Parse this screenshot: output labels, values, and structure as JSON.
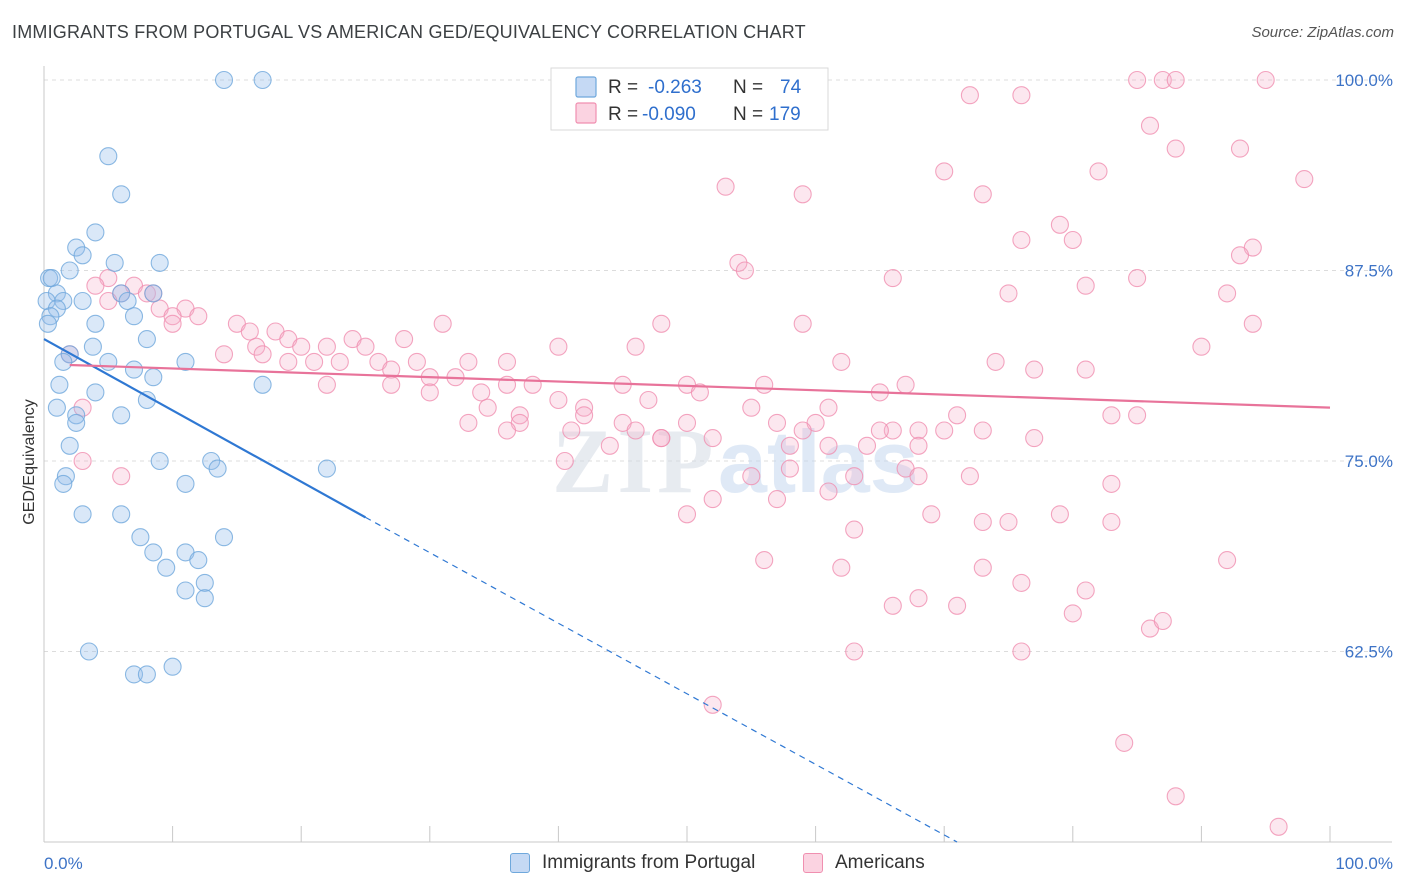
{
  "title": "IMMIGRANTS FROM PORTUGAL VS AMERICAN GED/EQUIVALENCY CORRELATION CHART",
  "source": "Source: ZipAtlas.com",
  "watermark": {
    "zip": "ZIP",
    "atlas": "atlas"
  },
  "legend_top": {
    "rows": [
      {
        "r_label": "R =",
        "r_value": "-0.263",
        "n_label": "N =",
        "n_value": "74"
      },
      {
        "r_label": "R =",
        "r_value": "-0.090",
        "n_label": "N =",
        "n_value": "179"
      }
    ]
  },
  "legend_bottom": {
    "items": [
      {
        "label": "Immigrants from Portugal"
      },
      {
        "label": "Americans"
      }
    ]
  },
  "chart_data": {
    "type": "scatter",
    "title": "IMMIGRANTS FROM PORTUGAL VS AMERICAN GED/EQUIVALENCY CORRELATION CHART",
    "xlabel": "",
    "ylabel": "GED/Equivalency",
    "xlim": [
      0,
      100
    ],
    "ylim": [
      50,
      100
    ],
    "x_tick_labels": [
      "0.0%",
      "100.0%"
    ],
    "y_ticks": [
      62.5,
      75.0,
      87.5,
      100.0
    ],
    "y_tick_labels": [
      "62.5%",
      "75.0%",
      "87.5%",
      "100.0%"
    ],
    "grid": true,
    "colors": {
      "blue": "#6fa8dc",
      "blue_line": "#2f78d3",
      "pink": "#f08fb0",
      "pink_line": "#e8739a",
      "tick_label": "#3d73c6"
    },
    "series": [
      {
        "name": "Immigrants from Portugal",
        "color": "blue",
        "trend": {
          "x": [
            0,
            25
          ],
          "y": [
            83.0,
            71.3
          ],
          "dashed_to": [
            71,
            50
          ]
        },
        "points": [
          [
            14,
            100
          ],
          [
            17,
            100
          ],
          [
            5,
            95
          ],
          [
            6,
            92.5
          ],
          [
            4,
            90
          ],
          [
            2.5,
            89
          ],
          [
            3,
            88.5
          ],
          [
            5.5,
            88
          ],
          [
            9,
            88
          ],
          [
            2,
            87.5
          ],
          [
            0.4,
            87
          ],
          [
            0.6,
            87
          ],
          [
            1,
            86
          ],
          [
            6,
            86
          ],
          [
            8.5,
            86
          ],
          [
            0.2,
            85.5
          ],
          [
            1.5,
            85.5
          ],
          [
            3,
            85.5
          ],
          [
            6.5,
            85.5
          ],
          [
            1,
            85
          ],
          [
            0.5,
            84.5
          ],
          [
            0.3,
            84
          ],
          [
            7,
            84.5
          ],
          [
            4,
            84
          ],
          [
            8,
            83
          ],
          [
            3.8,
            82.5
          ],
          [
            2,
            82
          ],
          [
            11,
            81.5
          ],
          [
            5,
            81.5
          ],
          [
            1.5,
            81.5
          ],
          [
            7,
            81
          ],
          [
            8.5,
            80.5
          ],
          [
            1.2,
            80
          ],
          [
            17,
            80
          ],
          [
            4,
            79.5
          ],
          [
            8,
            79
          ],
          [
            1,
            78.5
          ],
          [
            6,
            78
          ],
          [
            2.5,
            78
          ],
          [
            2.5,
            77.5
          ],
          [
            2,
            76
          ],
          [
            9,
            75
          ],
          [
            13,
            75
          ],
          [
            13.5,
            74.5
          ],
          [
            22,
            74.5
          ],
          [
            1.7,
            74
          ],
          [
            1.5,
            73.5
          ],
          [
            11,
            73.5
          ],
          [
            3,
            71.5
          ],
          [
            6,
            71.5
          ],
          [
            7.5,
            70
          ],
          [
            14,
            70
          ],
          [
            8.5,
            69
          ],
          [
            11,
            69
          ],
          [
            9.5,
            68
          ],
          [
            12,
            68.5
          ],
          [
            12.5,
            67
          ],
          [
            11,
            66.5
          ],
          [
            12.5,
            66
          ],
          [
            3.5,
            62.5
          ],
          [
            7,
            61
          ],
          [
            8,
            61
          ],
          [
            10,
            61.5
          ]
        ]
      },
      {
        "name": "Americans",
        "color": "pink",
        "trend": {
          "x": [
            2,
            100
          ],
          "y": [
            81.3,
            78.5
          ]
        },
        "points": [
          [
            85,
            100
          ],
          [
            87,
            100
          ],
          [
            88,
            100
          ],
          [
            95,
            100
          ],
          [
            72,
            99
          ],
          [
            76,
            99
          ],
          [
            86,
            97
          ],
          [
            88,
            95.5
          ],
          [
            93,
            95.5
          ],
          [
            70,
            94
          ],
          [
            82,
            94
          ],
          [
            98,
            93.5
          ],
          [
            53,
            93
          ],
          [
            59,
            92.5
          ],
          [
            73,
            92.5
          ],
          [
            79,
            90.5
          ],
          [
            76,
            89.5
          ],
          [
            80,
            89.5
          ],
          [
            94,
            89
          ],
          [
            93,
            88.5
          ],
          [
            54,
            88
          ],
          [
            54.5,
            87.5
          ],
          [
            66,
            87
          ],
          [
            85,
            87
          ],
          [
            81,
            86.5
          ],
          [
            92,
            86
          ],
          [
            75,
            86
          ],
          [
            5,
            87
          ],
          [
            7,
            86.5
          ],
          [
            4,
            86.5
          ],
          [
            8,
            86
          ],
          [
            8.5,
            86
          ],
          [
            6,
            86
          ],
          [
            5,
            85.5
          ],
          [
            11,
            85
          ],
          [
            9,
            85
          ],
          [
            10,
            84.5
          ],
          [
            12,
            84.5
          ],
          [
            48,
            84
          ],
          [
            59,
            84
          ],
          [
            31,
            84
          ],
          [
            94,
            84
          ],
          [
            10,
            84
          ],
          [
            15,
            84
          ],
          [
            18,
            83.5
          ],
          [
            16,
            83.5
          ],
          [
            19,
            83
          ],
          [
            24,
            83
          ],
          [
            28,
            83
          ],
          [
            22,
            82.5
          ],
          [
            20,
            82.5
          ],
          [
            16.5,
            82.5
          ],
          [
            25,
            82.5
          ],
          [
            40,
            82.5
          ],
          [
            46,
            82.5
          ],
          [
            14,
            82
          ],
          [
            17,
            82
          ],
          [
            2,
            82
          ],
          [
            19,
            81.5
          ],
          [
            21,
            81.5
          ],
          [
            23,
            81.5
          ],
          [
            26,
            81.5
          ],
          [
            33,
            81.5
          ],
          [
            36,
            81.5
          ],
          [
            62,
            81.5
          ],
          [
            74,
            81.5
          ],
          [
            77,
            81
          ],
          [
            81,
            81
          ],
          [
            90,
            82.5
          ],
          [
            27,
            81
          ],
          [
            29,
            81.5
          ],
          [
            30,
            80.5
          ],
          [
            22,
            80
          ],
          [
            27,
            80
          ],
          [
            32,
            80.5
          ],
          [
            36,
            80
          ],
          [
            38,
            80
          ],
          [
            45,
            80
          ],
          [
            50,
            80
          ],
          [
            51,
            79.5
          ],
          [
            56,
            80
          ],
          [
            65,
            79.5
          ],
          [
            67,
            80
          ],
          [
            30,
            79.5
          ],
          [
            34,
            79.5
          ],
          [
            40,
            79
          ],
          [
            47,
            79
          ],
          [
            34.5,
            78.5
          ],
          [
            42,
            78.5
          ],
          [
            55,
            78.5
          ],
          [
            61,
            78.5
          ],
          [
            3,
            78.5
          ],
          [
            37,
            78
          ],
          [
            42,
            78
          ],
          [
            71,
            78
          ],
          [
            85,
            78
          ],
          [
            83,
            78
          ],
          [
            33,
            77.5
          ],
          [
            37,
            77.5
          ],
          [
            45,
            77.5
          ],
          [
            50,
            77.5
          ],
          [
            57,
            77.5
          ],
          [
            60,
            77.5
          ],
          [
            66,
            77
          ],
          [
            68,
            77
          ],
          [
            36,
            77
          ],
          [
            41,
            77
          ],
          [
            46,
            77
          ],
          [
            48,
            76.5
          ],
          [
            52,
            76.5
          ],
          [
            58,
            76
          ],
          [
            59,
            77
          ],
          [
            65,
            77
          ],
          [
            70,
            77
          ],
          [
            73,
            77
          ],
          [
            77,
            76.5
          ],
          [
            44,
            76
          ],
          [
            48,
            76.5
          ],
          [
            61,
            76
          ],
          [
            64,
            76
          ],
          [
            68,
            76
          ],
          [
            40.5,
            75
          ],
          [
            58,
            74.5
          ],
          [
            67,
            74.5
          ],
          [
            55,
            74
          ],
          [
            63,
            74
          ],
          [
            68,
            74
          ],
          [
            72,
            74
          ],
          [
            83,
            73.5
          ],
          [
            61,
            73
          ],
          [
            52,
            72.5
          ],
          [
            57,
            72.5
          ],
          [
            50,
            71.5
          ],
          [
            69,
            71.5
          ],
          [
            73,
            71
          ],
          [
            79,
            71.5
          ],
          [
            63,
            70.5
          ],
          [
            75,
            71
          ],
          [
            83,
            71
          ],
          [
            56,
            68.5
          ],
          [
            62,
            68
          ],
          [
            73,
            68
          ],
          [
            76,
            67
          ],
          [
            81,
            66.5
          ],
          [
            68,
            66
          ],
          [
            66,
            65.5
          ],
          [
            71,
            65.5
          ],
          [
            80,
            65
          ],
          [
            92,
            68.5
          ],
          [
            86,
            64
          ],
          [
            87,
            64.5
          ],
          [
            63,
            62.5
          ],
          [
            76,
            62.5
          ],
          [
            52,
            59
          ],
          [
            84,
            56.5
          ],
          [
            88,
            53
          ],
          [
            96,
            51
          ],
          [
            3,
            75
          ],
          [
            6,
            74
          ]
        ]
      }
    ]
  }
}
